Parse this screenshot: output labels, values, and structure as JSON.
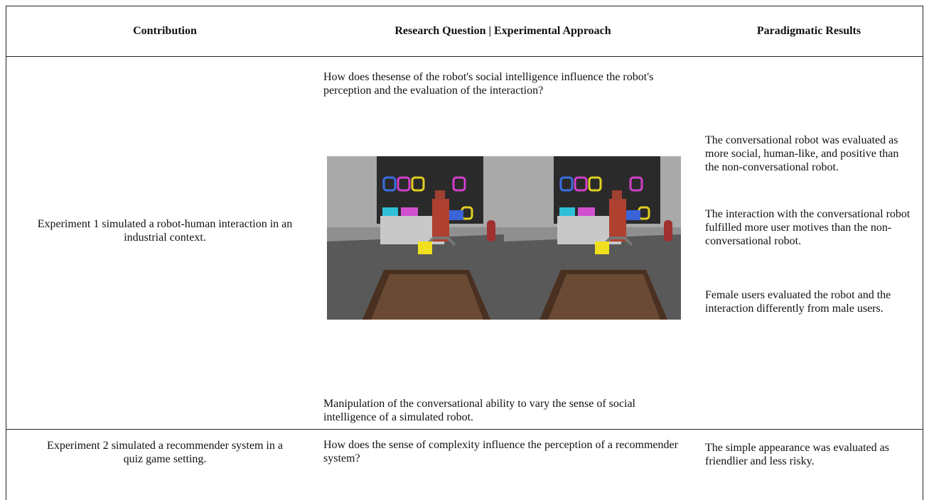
{
  "table": {
    "headers": [
      "Contribution",
      "Research Question | Experimental Approach",
      "Paradigmatic Results"
    ],
    "rows": [
      {
        "contribution": "Experiment 1 simulated a robot-human interaction in an industrial context.",
        "research_question": "How does thesense of the robot's social intelligence influence the robot's perception and the evaluation of the interaction?",
        "experimental_approach": "Manipulation of the conversational ability to vary the sense of social intelligence of a simulated robot.",
        "results": [
          "The conversational robot was evaluated as more social, human-like, and positive than the non-conversational robot.",
          "The interaction with the conversational robot fulfilled more user motives than the non-conversational robot.",
          "Female users evaluated the robot and the interaction differently from male users."
        ]
      },
      {
        "contribution": "Experiment 2 simulated a recommender system in a quiz game setting.",
        "research_question": "How does the sense of complexity influence the perception of a recommender system?",
        "results": [
          "The simple appearance was evaluated as friendlier and less risky."
        ]
      }
    ]
  }
}
